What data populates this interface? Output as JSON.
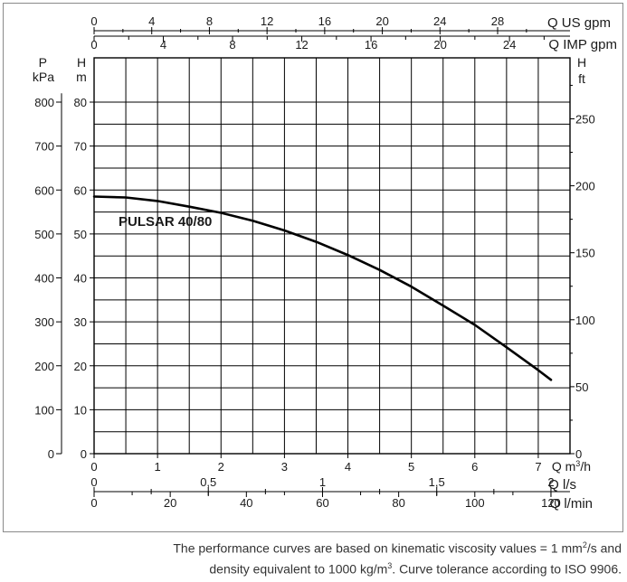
{
  "chart_data": {
    "type": "line",
    "title": "",
    "series": [
      {
        "name": "PULSAR 40/80",
        "x": [
          0,
          0.5,
          1,
          1.5,
          2,
          2.5,
          3,
          3.5,
          4,
          4.5,
          5,
          5.5,
          6,
          6.5,
          7,
          7.2
        ],
        "y": [
          58.5,
          58.3,
          57.5,
          56.2,
          54.8,
          53.0,
          50.8,
          48.2,
          45.2,
          41.8,
          38.0,
          33.7,
          29.3,
          24.2,
          19.0,
          16.8
        ]
      }
    ],
    "grid": true,
    "main_x_axis": {
      "label_parts": [
        "Q m",
        "3",
        "/h"
      ],
      "range": [
        0,
        7.5
      ],
      "ticks": [
        0,
        1,
        2,
        3,
        4,
        5,
        6,
        7
      ]
    },
    "left_h_axis": {
      "label_lines": [
        "H",
        "m"
      ],
      "range": [
        0,
        80
      ],
      "ticks": [
        0,
        10,
        20,
        30,
        40,
        50,
        60,
        70,
        80
      ]
    },
    "left_p_axis": {
      "label_lines": [
        "P",
        "kPa"
      ],
      "range_equiv_kpa_per_m": 10,
      "ticks": [
        0,
        100,
        200,
        300,
        400,
        500,
        600,
        700,
        800
      ]
    },
    "right_ft_axis": {
      "label_lines": [
        "H",
        "ft"
      ],
      "ticks": [
        0,
        50,
        100,
        150,
        200,
        250
      ]
    },
    "top_us_gpm_axis": {
      "label": "Q US gpm",
      "ticks": [
        0,
        4,
        8,
        12,
        16,
        20,
        24,
        28
      ]
    },
    "top_imp_gpm_axis": {
      "label": "Q IMP gpm",
      "ticks": [
        0,
        4,
        8,
        12,
        16,
        20,
        24
      ]
    },
    "bottom_ls_axis": {
      "label": "Q l/s",
      "ticks": [
        0,
        0.5,
        1,
        1.5,
        2
      ],
      "tick_labels": [
        "0",
        "0,5",
        "1",
        "1,5",
        "2"
      ]
    },
    "bottom_lmin_axis": {
      "label": "Q l/min",
      "ticks": [
        0,
        20,
        40,
        60,
        80,
        100,
        120
      ]
    }
  },
  "footnote": {
    "line1_text": "The performance curves are based on kinematic viscosity values = 1 mm",
    "line1_sup": "2",
    "line1_tail": "/s and",
    "line2_text": "density equivalent to 1000 kg/m",
    "line2_sup": "3",
    "line2_tail": ". Curve tolerance according to ISO 9906."
  }
}
